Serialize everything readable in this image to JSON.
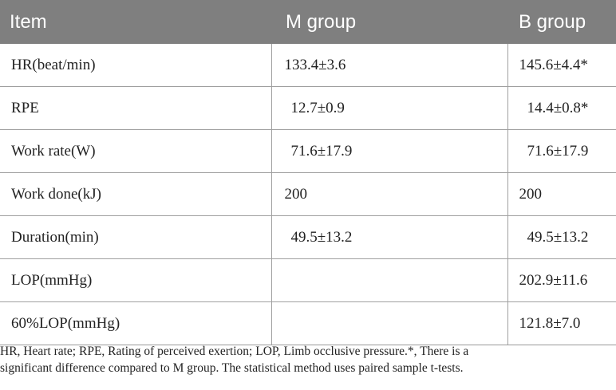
{
  "table": {
    "headers": [
      "Item",
      "M group",
      "B group"
    ],
    "rows": [
      {
        "item": "HR(beat/min)",
        "m": "133.4±3.6",
        "b": "145.6±4.4*"
      },
      {
        "item": "RPE",
        "m": "12.7±0.9",
        "b": "14.4±0.8*"
      },
      {
        "item": "Work rate(W)",
        "m": "71.6±17.9",
        "b": "71.6±17.9"
      },
      {
        "item": "Work done(kJ)",
        "m": "200",
        "b": "200"
      },
      {
        "item": "Duration(min)",
        "m": "49.5±13.2",
        "b": "49.5±13.2"
      },
      {
        "item": "LOP(mmHg)",
        "m": "",
        "b": "202.9±11.6"
      },
      {
        "item": "60%LOP(mmHg)",
        "m": "",
        "b": "121.8±7.0"
      }
    ]
  },
  "footnote": {
    "line1": "HR, Heart rate; RPE, Rating of perceived exertion; LOP, Limb occlusive pressure.*, There is a",
    "line2": "significant difference compared to M group. The statistical method uses paired sample t-tests."
  }
}
